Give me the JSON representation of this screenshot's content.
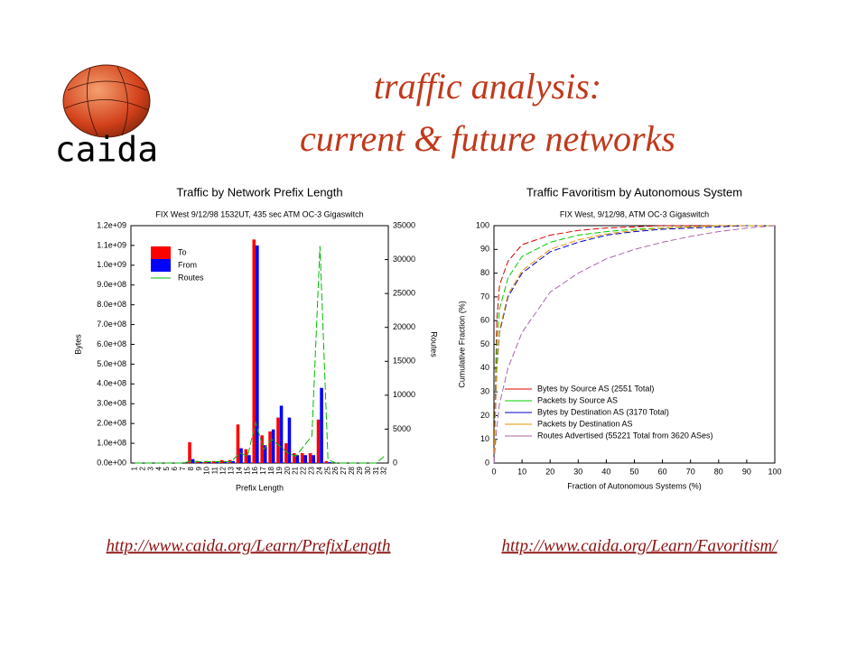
{
  "slide": {
    "logo": "caida",
    "title_lines": [
      "traffic analysis:",
      "current & future networks"
    ],
    "links": [
      "http://www.caida.org/Learn/PrefixLength",
      "http://www.caida.org/Learn/Favoritism/"
    ]
  },
  "chart_data": [
    {
      "type": "bar",
      "title": "Traffic by Network Prefix Length",
      "subtitle": "FIX West 9/12/98 1532UT, 435 sec ATM OC-3 Gigaswitch",
      "xlabel": "Prefix Length",
      "ylabel": "Bytes",
      "y2label": "Routes",
      "legend": "upper left",
      "categories": [
        "1",
        "2",
        "3",
        "4",
        "5",
        "6",
        "7",
        "8",
        "9",
        "10",
        "11",
        "12",
        "13",
        "14",
        "15",
        "16",
        "17",
        "18",
        "19",
        "20",
        "21",
        "22",
        "23",
        "24",
        "25",
        "26",
        "27",
        "28",
        "29",
        "30",
        "31",
        "32"
      ],
      "series": [
        {
          "name": "To",
          "color": "#ff0000",
          "values": [
            0,
            0,
            0,
            0,
            0,
            0,
            0,
            105000000,
            10000000,
            10000000,
            10000000,
            15000000,
            15000000,
            195000000,
            70000000,
            1130000000,
            140000000,
            160000000,
            230000000,
            100000000,
            50000000,
            50000000,
            50000000,
            220000000,
            10000000,
            0,
            0,
            0,
            0,
            0,
            0,
            0
          ]
        },
        {
          "name": "From",
          "color": "#0000ff",
          "values": [
            0,
            0,
            0,
            0,
            0,
            0,
            0,
            20000000,
            5000000,
            5000000,
            5000000,
            10000000,
            10000000,
            75000000,
            40000000,
            1100000000,
            90000000,
            170000000,
            290000000,
            230000000,
            40000000,
            40000000,
            40000000,
            380000000,
            5000000,
            0,
            0,
            0,
            0,
            0,
            0,
            0
          ]
        },
        {
          "name": "Routes",
          "color": "#00bb00",
          "axis": "y2",
          "values": [
            0,
            0,
            0,
            0,
            0,
            0,
            0,
            300,
            200,
            200,
            200,
            200,
            200,
            1500,
            1000,
            6000,
            2000,
            3500,
            2500,
            1500,
            1000,
            2500,
            4000,
            32000,
            500,
            0,
            0,
            0,
            0,
            0,
            0,
            1000
          ]
        }
      ],
      "ylim": [
        0,
        1200000000
      ],
      "yticks": [
        {
          "value": 0,
          "label": "0.0e+00"
        },
        {
          "value": 100000000,
          "label": "1.0e+08"
        },
        {
          "value": 200000000,
          "label": "2.0e+08"
        },
        {
          "value": 300000000,
          "label": "3.0e+08"
        },
        {
          "value": 400000000,
          "label": "4.0e+08"
        },
        {
          "value": 500000000,
          "label": "5.0e+08"
        },
        {
          "value": 600000000,
          "label": "6.0e+08"
        },
        {
          "value": 700000000,
          "label": "7.0e+08"
        },
        {
          "value": 800000000,
          "label": "8.0e+08"
        },
        {
          "value": 900000000,
          "label": "9.0e+08"
        },
        {
          "value": 1000000000,
          "label": "1.0e+09"
        },
        {
          "value": 1100000000,
          "label": "1.1e+09"
        },
        {
          "value": 1200000000,
          "label": "1.2e+09"
        }
      ],
      "y2lim": [
        0,
        35000
      ],
      "y2ticks": [
        0,
        5000,
        10000,
        15000,
        20000,
        25000,
        30000,
        35000
      ]
    },
    {
      "type": "line",
      "title": "Traffic Favoritism by Autonomous System",
      "subtitle": "FIX West, 9/12/98, ATM OC-3 Gigaswitch",
      "xlabel": "Fraction of Autonomous Systems (%)",
      "ylabel": "Cumulative Fraction (%)",
      "legend": "lower left",
      "x": [
        0,
        1,
        2,
        5,
        10,
        20,
        30,
        40,
        50,
        60,
        70,
        80,
        90,
        100
      ],
      "series": [
        {
          "name": "Bytes by Source AS (2551 Total)",
          "color": "#dd0000",
          "values": [
            0,
            60,
            75,
            85,
            92,
            96,
            98,
            99,
            99.5,
            100,
            100,
            100,
            100,
            100
          ]
        },
        {
          "name": "Packets by Source AS",
          "color": "#00cc00",
          "values": [
            0,
            50,
            65,
            78,
            87,
            93,
            96,
            97.5,
            98.5,
            99,
            99.5,
            100,
            100,
            100
          ]
        },
        {
          "name": "Bytes by Destination AS (3170 Total)",
          "color": "#0000cc",
          "values": [
            0,
            40,
            55,
            70,
            80,
            89,
            93,
            96,
            97.5,
            98.5,
            99,
            99.5,
            100,
            100
          ]
        },
        {
          "name": "Packets by Destination AS",
          "color": "#e69500",
          "values": [
            0,
            42,
            56,
            71,
            81,
            90,
            94,
            96.5,
            98,
            99,
            99.5,
            100,
            100,
            100
          ]
        },
        {
          "name": "Routes Advertised (55221 Total from 3620 ASes)",
          "color": "#aa66aa",
          "values": [
            0,
            15,
            25,
            40,
            55,
            72,
            80,
            86,
            90,
            93,
            95.5,
            97.5,
            99,
            100
          ]
        }
      ],
      "xlim": [
        0,
        100
      ],
      "xticks": [
        0,
        10,
        20,
        30,
        40,
        50,
        60,
        70,
        80,
        90,
        100
      ],
      "ylim": [
        0,
        100
      ],
      "yticks": [
        0,
        10,
        20,
        30,
        40,
        50,
        60,
        70,
        80,
        90,
        100
      ]
    }
  ]
}
